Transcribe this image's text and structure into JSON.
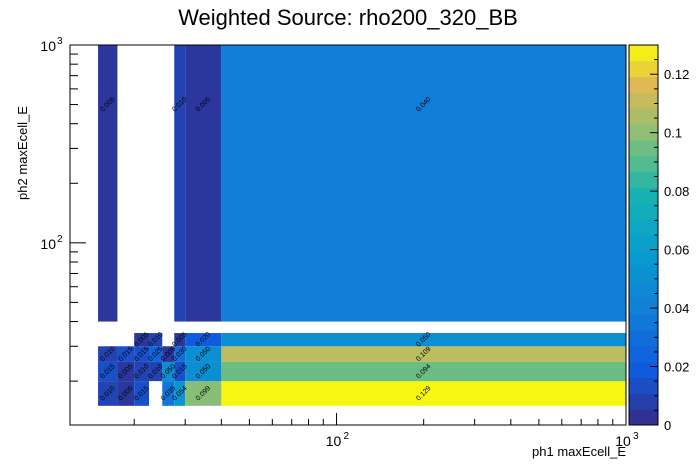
{
  "chart_data": {
    "type": "heatmap",
    "title": "Weighted Source: rho200_320_BB",
    "xlabel": "ph1 maxEcell_E",
    "ylabel": "ph2 maxEcell_E",
    "x_scale": "log",
    "y_scale": "log",
    "x_range": [
      12,
      1000
    ],
    "y_range": [
      12,
      1000
    ],
    "x_ticks": [
      {
        "v": 100,
        "base": "10",
        "exp": "2"
      },
      {
        "v": 1000,
        "base": "10",
        "exp": "3"
      }
    ],
    "y_ticks": [
      {
        "v": 100,
        "base": "10",
        "exp": "2"
      },
      {
        "v": 1000,
        "base": "10",
        "exp": "3"
      }
    ],
    "x_edges": [
      15,
      17.5,
      20,
      22.5,
      25,
      27.5,
      30,
      40,
      1000
    ],
    "y_edges": [
      15,
      20,
      25,
      30,
      35,
      40,
      1000
    ],
    "z_range": [
      0,
      0.13
    ],
    "colorbar_ticks": [
      "0",
      "0.02",
      "0.04",
      "0.06",
      "0.08",
      "0.1",
      "0.12"
    ],
    "colorbar_tick_values": [
      0,
      0.02,
      0.04,
      0.06,
      0.08,
      0.1,
      0.12
    ],
    "cells": [
      {
        "xi": 0,
        "yi": 0,
        "v": 0.01,
        "label": "0.010"
      },
      {
        "xi": 1,
        "yi": 0,
        "v": 0.005,
        "label": "0.005"
      },
      {
        "xi": 2,
        "yi": 0,
        "v": 0.015,
        "label": "0.015"
      },
      {
        "xi": 4,
        "yi": 0,
        "v": 0.035,
        "label": "0.035"
      },
      {
        "xi": 5,
        "yi": 0,
        "v": 0.054,
        "label": "0.054"
      },
      {
        "xi": 6,
        "yi": 0,
        "v": 0.099,
        "label": "0.099"
      },
      {
        "xi": 7,
        "yi": 0,
        "v": 0.129,
        "label": "0.129"
      },
      {
        "xi": 0,
        "yi": 1,
        "v": 0.015,
        "label": "0.015"
      },
      {
        "xi": 1,
        "yi": 1,
        "v": 0.005,
        "label": "0.005"
      },
      {
        "xi": 2,
        "yi": 1,
        "v": 0.01,
        "label": "0.010"
      },
      {
        "xi": 3,
        "yi": 1,
        "v": 0.01,
        "label": "0.010"
      },
      {
        "xi": 4,
        "yi": 1,
        "v": 0.05,
        "label": "0.050"
      },
      {
        "xi": 5,
        "yi": 1,
        "v": 0.015,
        "label": "0.015"
      },
      {
        "xi": 6,
        "yi": 1,
        "v": 0.05,
        "label": "0.050"
      },
      {
        "xi": 7,
        "yi": 1,
        "v": 0.094,
        "label": "0.094"
      },
      {
        "xi": 0,
        "yi": 2,
        "v": 0.01,
        "label": "0.010"
      },
      {
        "xi": 1,
        "yi": 2,
        "v": 0.015,
        "label": "0.015"
      },
      {
        "xi": 2,
        "yi": 2,
        "v": 0.015,
        "label": "0.015"
      },
      {
        "xi": 3,
        "yi": 2,
        "v": 0.025,
        "label": "0.025"
      },
      {
        "xi": 4,
        "yi": 2,
        "v": 0.005,
        "label": "0.005"
      },
      {
        "xi": 5,
        "yi": 2,
        "v": 0.03,
        "label": "0.030"
      },
      {
        "xi": 6,
        "yi": 2,
        "v": 0.05,
        "label": "0.050"
      },
      {
        "xi": 7,
        "yi": 2,
        "v": 0.109,
        "label": "0.109"
      },
      {
        "xi": 2,
        "yi": 3,
        "v": 0.005,
        "label": "0.005"
      },
      {
        "xi": 3,
        "yi": 3,
        "v": 0.01,
        "label": "0.010"
      },
      {
        "xi": 5,
        "yi": 3,
        "v": 0.005,
        "label": "0.005"
      },
      {
        "xi": 6,
        "yi": 3,
        "v": 0.02,
        "label": "0.020"
      },
      {
        "xi": 7,
        "yi": 3,
        "v": 0.05,
        "label": "0.050"
      },
      {
        "xi": 0,
        "yi": 5,
        "v": 0.005,
        "label": "0.005"
      },
      {
        "xi": 5,
        "yi": 5,
        "v": 0.01,
        "label": "0.010"
      },
      {
        "xi": 6,
        "yi": 5,
        "v": 0.005,
        "label": "0.005"
      },
      {
        "xi": 7,
        "yi": 5,
        "v": 0.04,
        "label": "0.040"
      }
    ]
  }
}
